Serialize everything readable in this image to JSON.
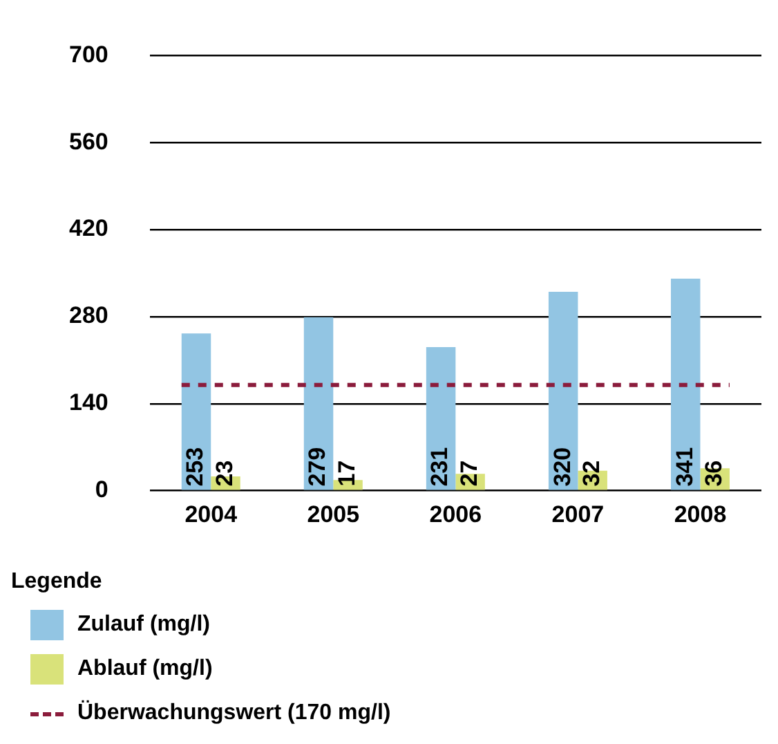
{
  "chart_data": {
    "type": "bar",
    "categories": [
      "2004",
      "2005",
      "2006",
      "2007",
      "2008"
    ],
    "series": [
      {
        "name": "Zulauf (mg/l)",
        "color": "#92c5e3",
        "values": [
          253,
          279,
          231,
          320,
          341
        ]
      },
      {
        "name": "Ablauf (mg/l)",
        "color": "#d9e27a",
        "values": [
          23,
          17,
          27,
          32,
          36
        ]
      }
    ],
    "ylim": [
      0,
      700
    ],
    "yticks": [
      0,
      140,
      280,
      420,
      560,
      700
    ],
    "grid": "y",
    "data_labels": true,
    "legend": "bottom",
    "legend_title": "Legende",
    "ref_lines": [
      {
        "axis": "y",
        "value": 170,
        "label": "Überwachungswert (170 mg/l)",
        "color": "#8b1c3c",
        "line_style": "dashed"
      }
    ]
  }
}
